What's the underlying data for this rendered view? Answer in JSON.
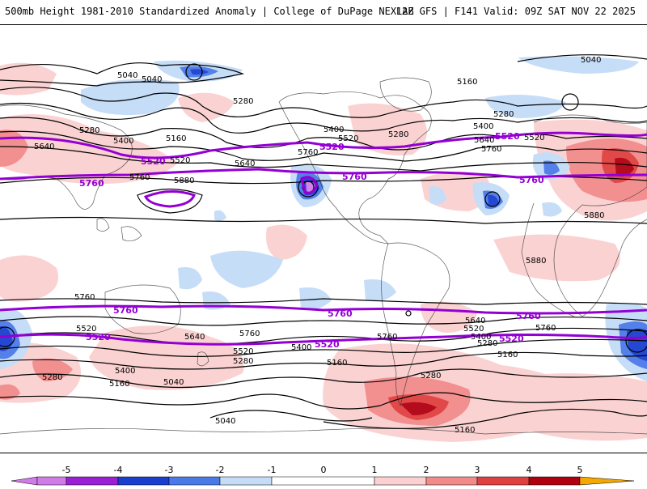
{
  "header": {
    "title": "500mb Height 1981-2010 Standardized Anomaly | College of DuPage NEXLAB",
    "run_info": "12Z GFS | F141 Valid: 09Z SAT NOV 22 2025"
  },
  "colors": {
    "neg5": "#d07ce8",
    "neg4": "#9b1fd4",
    "neg3": "#1a3fd0",
    "neg2": "#4a7ae8",
    "neg1": "#c4dcf8",
    "pos1": "#fbd0d0",
    "pos2": "#f28a8a",
    "pos3": "#e04040",
    "pos4": "#b00010",
    "pos5": "#f5a800",
    "highlight_contour": "#9400d3"
  },
  "colorbar": {
    "ticks": [
      "-5",
      "-4",
      "-3",
      "-2",
      "-1",
      "0",
      "1",
      "2",
      "3",
      "4",
      "5"
    ]
  },
  "contour_labels": {
    "c5040": "5040",
    "c5160": "5160",
    "c5280": "5280",
    "c5400": "5400",
    "c5520": "5520",
    "c5640": "5640",
    "c5760": "5760",
    "c5880": "5880"
  }
}
